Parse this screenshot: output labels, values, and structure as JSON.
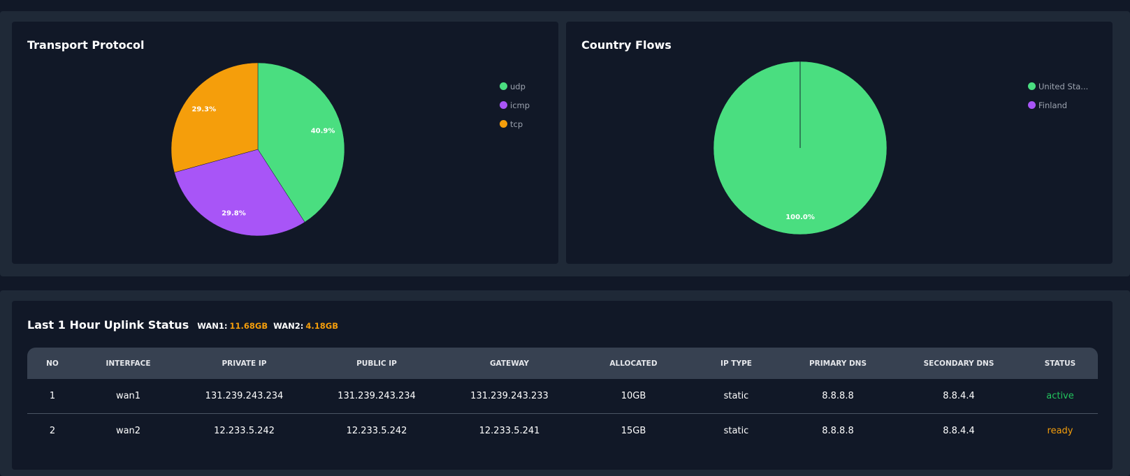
{
  "charts": {
    "transport": {
      "title": "Transport Protocol",
      "legend": [
        {
          "label": "udp",
          "color": "#4ade80"
        },
        {
          "label": "icmp",
          "color": "#a855f7"
        },
        {
          "label": "tcp",
          "color": "#f59e0b"
        }
      ]
    },
    "country": {
      "title": "Country Flows",
      "legend": [
        {
          "label": "United Sta...",
          "color": "#4ade80"
        },
        {
          "label": "Finland",
          "color": "#a855f7"
        }
      ]
    }
  },
  "chart_data": [
    {
      "type": "pie",
      "title": "Transport Protocol",
      "categories": [
        "udp",
        "icmp",
        "tcp"
      ],
      "values": [
        40.9,
        29.8,
        29.3
      ],
      "labels": [
        "40.9%",
        "29.8%",
        "29.3%"
      ],
      "colors": [
        "#4ade80",
        "#a855f7",
        "#f59e0b"
      ],
      "legend": "right"
    },
    {
      "type": "pie",
      "title": "Country Flows",
      "categories": [
        "United Sta...",
        "Finland"
      ],
      "values": [
        99.98,
        0.02
      ],
      "labels": [
        "100.0%",
        ""
      ],
      "colors": [
        "#4ade80",
        "#a855f7"
      ],
      "legend": "right"
    }
  ],
  "uplink": {
    "title": "Last 1 Hour Uplink Status",
    "wan1_label": "WAN1:",
    "wan1_value": "11.68GB",
    "wan2_label": "WAN2:",
    "wan2_value": "4.18GB",
    "columns": [
      "NO",
      "INTERFACE",
      "PRIVATE IP",
      "PUBLIC IP",
      "GATEWAY",
      "ALLOCATED",
      "IP TYPE",
      "PRIMARY DNS",
      "SECONDARY DNS",
      "STATUS"
    ],
    "rows": [
      [
        "1",
        "wan1",
        "131.239.243.234",
        "131.239.243.234",
        "131.239.243.233",
        "10GB",
        "static",
        "8.8.8.8",
        "8.8.4.4",
        "active"
      ],
      [
        "2",
        "wan2",
        "12.233.5.242",
        "12.233.5.242",
        "12.233.5.241",
        "15GB",
        "static",
        "8.8.8.8",
        "8.8.4.4",
        "ready"
      ]
    ]
  }
}
